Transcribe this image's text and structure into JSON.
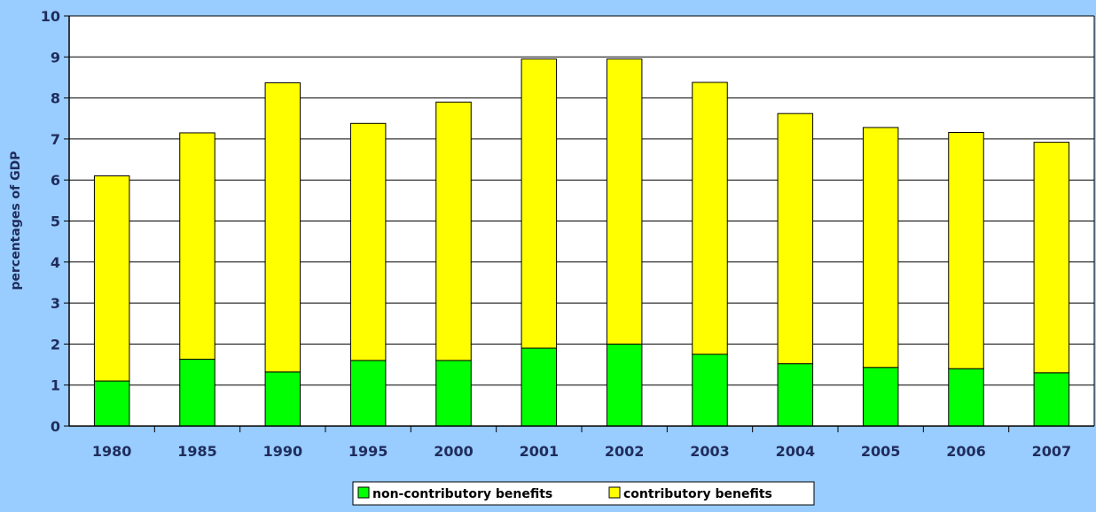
{
  "colors": {
    "background": "#99CCFF",
    "plot_background": "#FFFFFF",
    "non_contributory": "#00FF00",
    "contributory": "#FFFF00",
    "text": "#1F2D5C"
  },
  "chart_data": {
    "type": "bar",
    "stacked": true,
    "categories": [
      "1980",
      "1985",
      "1990",
      "1995",
      "2000",
      "2001",
      "2002",
      "2003",
      "2004",
      "2005",
      "2006",
      "2007"
    ],
    "series": [
      {
        "name": "non-contributory benefits",
        "values": [
          1.1,
          1.63,
          1.32,
          1.6,
          1.6,
          1.9,
          2.0,
          1.75,
          1.52,
          1.43,
          1.4,
          1.3
        ]
      },
      {
        "name": "contributory benefits",
        "values": [
          5.0,
          5.52,
          7.05,
          5.78,
          6.3,
          7.05,
          6.95,
          6.63,
          6.1,
          5.85,
          5.76,
          5.62
        ]
      }
    ],
    "title": "",
    "xlabel": "",
    "ylabel": "percentages of GDP",
    "ylim": [
      0,
      10
    ],
    "yticks": [
      "0",
      "1",
      "2",
      "3",
      "4",
      "5",
      "6",
      "7",
      "8",
      "9",
      "10"
    ],
    "grid": true,
    "legend_position": "bottom"
  }
}
